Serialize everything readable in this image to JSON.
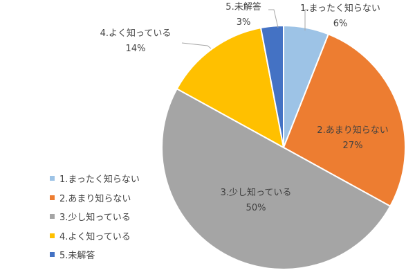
{
  "chart_data": {
    "type": "pie",
    "title": "",
    "categories": [
      "1.まったく知らない",
      "2.あまり知らない",
      "3.少し知っている",
      "4.よく知っている",
      "5.未解答"
    ],
    "values": [
      6,
      27,
      50,
      14,
      3
    ],
    "value_labels": [
      "6%",
      "27%",
      "50%",
      "14%",
      "3%"
    ],
    "colors": [
      "#9dc3e6",
      "#ed7d31",
      "#a5a5a5",
      "#ffc000",
      "#4472c4"
    ],
    "start_angle_deg": 0,
    "direction": "clockwise",
    "legend": {
      "position": "left",
      "entries": [
        "1.まったく知らない",
        "2.あまり知らない",
        "3.少し知っている",
        "4.よく知っている",
        "5.未解答"
      ]
    }
  }
}
